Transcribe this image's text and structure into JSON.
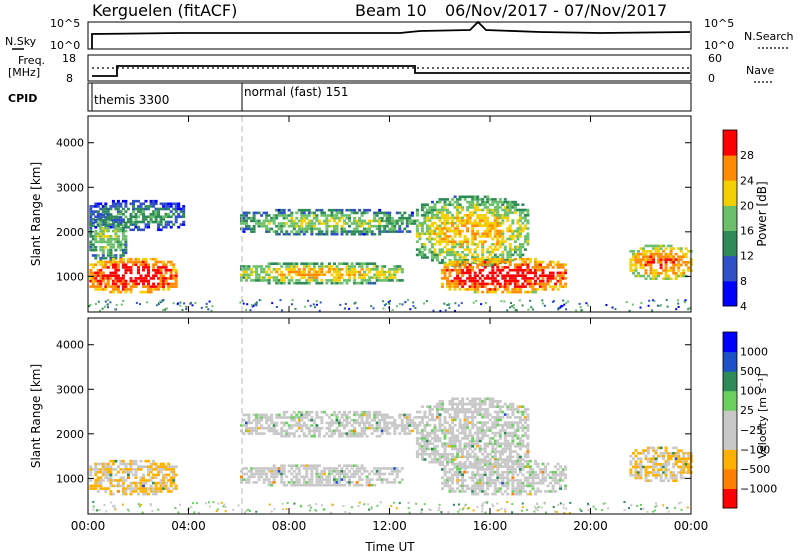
{
  "header": {
    "radar": "Kerguelen (fitACF)",
    "beam_label": "Beam 10",
    "date_range": "06/Nov/2017 - 07/Nov/2017"
  },
  "nsky_panel": {
    "left_label": "N.Sky",
    "left_ticks": [
      "10^5",
      "10^0"
    ],
    "right_label": "N.Search",
    "right_ticks": [
      "10^5",
      "10^0"
    ]
  },
  "freq_panel": {
    "left_label_1": "Freq.",
    "left_label_2": "[MHz]",
    "left_ticks": [
      "18",
      "8"
    ],
    "right_label": "Nave",
    "right_ticks": [
      "60",
      "0"
    ]
  },
  "cpid_panel": {
    "label": "CPID",
    "programs": [
      {
        "name": "themis 3300",
        "start_hour": 0
      },
      {
        "name": "normal (fast) 151",
        "start_hour": 6
      }
    ]
  },
  "chart_data": [
    {
      "type": "heatmap",
      "panel": "power",
      "ylabel": "Slant Range [km]",
      "xlabel": "",
      "x_ticks": [
        "00:00",
        "04:00",
        "08:00",
        "12:00",
        "16:00",
        "20:00",
        "00:00"
      ],
      "y_ticks": [
        1000,
        2000,
        3000,
        4000
      ],
      "xlim_hours": [
        0,
        24
      ],
      "ylim_km": [
        200,
        4600
      ],
      "colorbar": {
        "label": "Power [dB]",
        "ticks": [
          "28",
          "24",
          "20",
          "16",
          "12",
          "8",
          "4"
        ],
        "colors": [
          "#0000ff",
          "#3050c8",
          "#2e8b57",
          "#6cc06c",
          "#f5d000",
          "#ff8c00",
          "#ff0000"
        ]
      },
      "echo_regions": [
        {
          "t": [
            0.0,
            3.8
          ],
          "r": [
            2000,
            2700
          ],
          "power_db": 8
        },
        {
          "t": [
            0.0,
            1.5
          ],
          "r": [
            1300,
            2400
          ],
          "power_db": 12
        },
        {
          "t": [
            0.0,
            3.5
          ],
          "r": [
            600,
            1400
          ],
          "power_db": 24
        },
        {
          "t": [
            6.0,
            13.0
          ],
          "r": [
            1900,
            2500
          ],
          "power_db": 12
        },
        {
          "t": [
            6.0,
            12.5
          ],
          "r": [
            800,
            1300
          ],
          "power_db": 16
        },
        {
          "t": [
            13.0,
            17.5
          ],
          "r": [
            1200,
            2800
          ],
          "power_db": 16
        },
        {
          "t": [
            14.0,
            19.0
          ],
          "r": [
            600,
            1400
          ],
          "power_db": 24
        },
        {
          "t": [
            21.5,
            24.0
          ],
          "r": [
            900,
            1700
          ],
          "power_db": 20
        }
      ]
    },
    {
      "type": "heatmap",
      "panel": "velocity",
      "ylabel": "Slant Range [km]",
      "xlabel": "Time UT",
      "x_ticks": [
        "00:00",
        "04:00",
        "08:00",
        "12:00",
        "16:00",
        "20:00",
        "00:00"
      ],
      "y_ticks": [
        1000,
        2000,
        3000,
        4000
      ],
      "xlim_hours": [
        0,
        24
      ],
      "ylim_km": [
        200,
        4600
      ],
      "colorbar": {
        "label": "Velocity [m s⁻¹]",
        "ticks": [
          "1000",
          "500",
          "100",
          "25",
          "−25",
          "−100",
          "−500",
          "−1000"
        ],
        "colors": [
          "#ff0000",
          "#ff7f00",
          "#ffb000",
          "#c8c8c8",
          "#c8c8c8",
          "#6cd060",
          "#2e8b57",
          "#1e50c8",
          "#0000ff"
        ]
      },
      "echo_regions": [
        {
          "t": [
            0.0,
            3.5
          ],
          "r": [
            600,
            1400
          ],
          "velocity": -100
        },
        {
          "t": [
            6.0,
            13.0
          ],
          "r": [
            1900,
            2500
          ],
          "velocity": 0
        },
        {
          "t": [
            6.0,
            12.5
          ],
          "r": [
            800,
            1300
          ],
          "velocity": 0
        },
        {
          "t": [
            13.0,
            17.5
          ],
          "r": [
            1200,
            2800
          ],
          "velocity": 0
        },
        {
          "t": [
            14.0,
            19.0
          ],
          "r": [
            600,
            1400
          ],
          "velocity": 0
        },
        {
          "t": [
            21.5,
            24.0
          ],
          "r": [
            900,
            1700
          ],
          "velocity": -100
        }
      ]
    }
  ]
}
